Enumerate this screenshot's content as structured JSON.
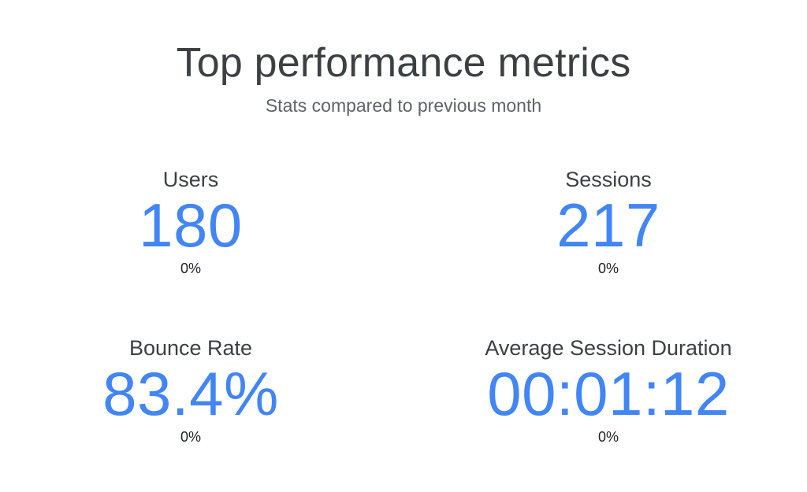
{
  "header": {
    "title": "Top performance metrics",
    "subtitle": "Stats compared to previous month"
  },
  "metrics": [
    {
      "label": "Users",
      "value": "180",
      "change": "0%"
    },
    {
      "label": "Sessions",
      "value": "217",
      "change": "0%"
    },
    {
      "label": "Bounce Rate",
      "value": "83.4%",
      "change": "0%"
    },
    {
      "label": "Average Session Duration",
      "value": "00:01:12",
      "change": "0%"
    }
  ],
  "colors": {
    "value": "#4285f4",
    "title": "#3c4043",
    "subtitle": "#5f6368",
    "change": "#202124",
    "background": "#ffffff"
  }
}
